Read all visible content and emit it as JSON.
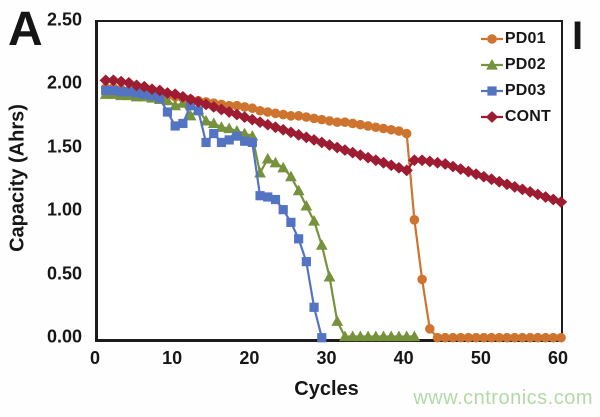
{
  "panel_label": "A",
  "corner_mark": "I",
  "watermark": "www.cntronics.com",
  "colors": {
    "axis": "#1c1c1c",
    "text": "#161616",
    "watermark": "#b3d9a6"
  },
  "chart_data": {
    "type": "line",
    "title": "",
    "xlabel": "Cycles",
    "ylabel": "Capacity (Ahrs)",
    "xlim": [
      0,
      60
    ],
    "ylim": [
      0,
      2.5
    ],
    "grid": false,
    "legend_position": "top-right-inside",
    "x_start": 1,
    "x_ticks": [
      {
        "value": 0,
        "label": "0"
      },
      {
        "value": 10,
        "label": "10"
      },
      {
        "value": 20,
        "label": "20"
      },
      {
        "value": 30,
        "label": "30"
      },
      {
        "value": 40,
        "label": "40"
      },
      {
        "value": 50,
        "label": "50"
      },
      {
        "value": 60,
        "label": "60"
      }
    ],
    "y_ticks": [
      {
        "value": 2.5,
        "label": "2.50"
      },
      {
        "value": 2.0,
        "label": "2.00"
      },
      {
        "value": 1.5,
        "label": "1.50"
      },
      {
        "value": 1.0,
        "label": "1.00"
      },
      {
        "value": 0.5,
        "label": "0.50"
      },
      {
        "value": 0.0,
        "label": "0.00"
      }
    ],
    "series": [
      {
        "name": "PD01",
        "marker": "circle",
        "color": "#CE742F",
        "values": [
          1.98,
          1.98,
          1.97,
          1.96,
          1.96,
          1.95,
          1.94,
          1.93,
          1.92,
          1.91,
          1.9,
          1.89,
          1.88,
          1.87,
          1.86,
          1.85,
          1.84,
          1.84,
          1.83,
          1.82,
          1.8,
          1.79,
          1.78,
          1.77,
          1.76,
          1.76,
          1.75,
          1.74,
          1.73,
          1.72,
          1.71,
          1.71,
          1.7,
          1.69,
          1.68,
          1.67,
          1.66,
          1.65,
          1.64,
          1.62,
          0.94,
          0.47,
          0.08,
          0.01,
          0.01,
          0.01,
          0.01,
          0.01,
          0.01,
          0.01,
          0.01,
          0.01,
          0.01,
          0.01,
          0.01,
          0.01,
          0.01,
          0.01,
          0.01,
          0.01
        ]
      },
      {
        "name": "PD02",
        "marker": "triangle",
        "color": "#76923C",
        "values": [
          1.93,
          1.93,
          1.92,
          1.92,
          1.91,
          1.91,
          1.9,
          1.89,
          1.88,
          1.84,
          1.86,
          1.76,
          1.81,
          1.72,
          1.7,
          1.67,
          1.66,
          1.64,
          1.62,
          1.6,
          1.31,
          1.42,
          1.39,
          1.35,
          1.28,
          1.17,
          1.05,
          0.93,
          0.74,
          0.49,
          0.14,
          0.02,
          0.02,
          0.02,
          0.02,
          0.02,
          0.02,
          0.02,
          0.02,
          0.02,
          0.02
        ]
      },
      {
        "name": "PD03",
        "marker": "square",
        "color": "#5274C2",
        "values": [
          1.96,
          1.96,
          1.95,
          1.95,
          1.94,
          1.93,
          1.92,
          1.9,
          1.79,
          1.68,
          1.7,
          1.84,
          1.8,
          1.55,
          1.62,
          1.55,
          1.57,
          1.6,
          1.56,
          1.55,
          1.13,
          1.12,
          1.1,
          1.02,
          0.92,
          0.79,
          0.61,
          0.25,
          0.01
        ]
      },
      {
        "name": "CONT",
        "marker": "diamond",
        "color": "#9E1C32",
        "values": [
          2.04,
          2.04,
          2.03,
          2.02,
          2.0,
          1.99,
          1.97,
          1.96,
          1.94,
          1.93,
          1.91,
          1.89,
          1.87,
          1.85,
          1.83,
          1.81,
          1.79,
          1.77,
          1.75,
          1.73,
          1.71,
          1.69,
          1.67,
          1.65,
          1.63,
          1.61,
          1.59,
          1.57,
          1.55,
          1.53,
          1.51,
          1.49,
          1.47,
          1.45,
          1.43,
          1.41,
          1.39,
          1.37,
          1.35,
          1.33,
          1.41,
          1.41,
          1.4,
          1.39,
          1.38,
          1.36,
          1.34,
          1.32,
          1.3,
          1.28,
          1.26,
          1.24,
          1.22,
          1.2,
          1.18,
          1.16,
          1.14,
          1.12,
          1.1,
          1.08
        ]
      }
    ]
  }
}
